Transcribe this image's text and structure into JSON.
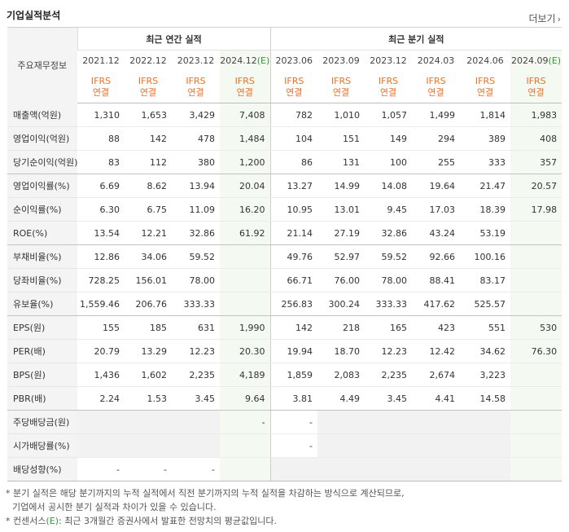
{
  "title": "기업실적분석",
  "more_label": "더보기",
  "more_icon": "chevron-right-icon",
  "row_header_label": "주요재무정보",
  "annual_header": "최근 연간 실적",
  "quarter_header": "최근 분기 실적",
  "periods": [
    {
      "label": "2021.12",
      "std1": "IFRS",
      "std2": "연결",
      "estimate": false
    },
    {
      "label": "2022.12",
      "std1": "IFRS",
      "std2": "연결",
      "estimate": false
    },
    {
      "label": "2023.12",
      "std1": "IFRS",
      "std2": "연결",
      "estimate": false
    },
    {
      "label": "2024.12",
      "est_mark": "(E)",
      "std1": "IFRS",
      "std2": "연결",
      "estimate": true
    },
    {
      "label": "2023.06",
      "std1": "IFRS",
      "std2": "연결",
      "estimate": false
    },
    {
      "label": "2023.09",
      "std1": "IFRS",
      "std2": "연결",
      "estimate": false
    },
    {
      "label": "2023.12",
      "std1": "IFRS",
      "std2": "연결",
      "estimate": false
    },
    {
      "label": "2024.03",
      "std1": "IFRS",
      "std2": "연결",
      "estimate": false
    },
    {
      "label": "2024.06",
      "std1": "IFRS",
      "std2": "연결",
      "estimate": false
    },
    {
      "label": "2024.09",
      "est_mark": "(E)",
      "std1": "IFRS",
      "std2": "연결",
      "estimate": true
    }
  ],
  "rows": [
    {
      "label": "매출액(억원)",
      "values": [
        "1,310",
        "1,653",
        "3,429",
        "7,408",
        "782",
        "1,010",
        "1,057",
        "1,499",
        "1,814",
        "1,983"
      ]
    },
    {
      "label": "영업이익(억원)",
      "values": [
        "88",
        "142",
        "478",
        "1,484",
        "104",
        "151",
        "149",
        "294",
        "389",
        "408"
      ]
    },
    {
      "label": "당기순이익(억원)",
      "values": [
        "83",
        "112",
        "380",
        "1,200",
        "86",
        "131",
        "100",
        "255",
        "333",
        "357"
      ],
      "group_end": true
    },
    {
      "label": "영업이익률(%)",
      "values": [
        "6.69",
        "8.62",
        "13.94",
        "20.04",
        "13.27",
        "14.99",
        "14.08",
        "19.64",
        "21.47",
        "20.57"
      ]
    },
    {
      "label": "순이익률(%)",
      "values": [
        "6.30",
        "6.75",
        "11.09",
        "16.20",
        "10.95",
        "13.01",
        "9.45",
        "17.03",
        "18.39",
        "17.98"
      ]
    },
    {
      "label": "ROE(%)",
      "values": [
        "13.54",
        "12.21",
        "32.86",
        "61.92",
        "21.14",
        "27.19",
        "32.86",
        "43.24",
        "53.19",
        ""
      ],
      "group_end": true
    },
    {
      "label": "부채비율(%)",
      "values": [
        "12.86",
        "34.06",
        "59.52",
        "",
        "49.76",
        "52.97",
        "59.52",
        "92.66",
        "100.16",
        ""
      ]
    },
    {
      "label": "당좌비율(%)",
      "values": [
        "728.25",
        "156.01",
        "78.00",
        "",
        "66.71",
        "76.00",
        "78.00",
        "88.41",
        "83.17",
        ""
      ]
    },
    {
      "label": "유보율(%)",
      "values": [
        "1,559.46",
        "206.76",
        "333.33",
        "",
        "256.83",
        "300.24",
        "333.33",
        "417.62",
        "525.57",
        ""
      ],
      "group_end": true
    },
    {
      "label": "EPS(원)",
      "values": [
        "155",
        "185",
        "631",
        "1,990",
        "142",
        "218",
        "165",
        "423",
        "551",
        "530"
      ]
    },
    {
      "label": "PER(배)",
      "values": [
        "20.79",
        "13.29",
        "12.23",
        "20.30",
        "19.94",
        "18.70",
        "12.23",
        "12.42",
        "34.62",
        "76.30"
      ]
    },
    {
      "label": "BPS(원)",
      "values": [
        "1,436",
        "1,602",
        "2,235",
        "4,189",
        "1,859",
        "2,083",
        "2,235",
        "2,674",
        "3,223",
        ""
      ]
    },
    {
      "label": "PBR(배)",
      "values": [
        "2.24",
        "1.53",
        "3.45",
        "9.64",
        "3.81",
        "4.49",
        "3.45",
        "4.41",
        "14.58",
        ""
      ],
      "group_end": true
    },
    {
      "label": "주당배당금(원)",
      "values": [
        "",
        "",
        "",
        "-",
        "-",
        "",
        "",
        "",
        "",
        ""
      ],
      "empty_cols": [
        0,
        1,
        2,
        5,
        6,
        7,
        8,
        9
      ]
    },
    {
      "label": "시가배당률(%)",
      "values": [
        "",
        "",
        "",
        "",
        "-",
        "",
        "",
        "",
        "",
        ""
      ],
      "empty_cols": [
        0,
        1,
        2,
        3,
        5,
        6,
        7,
        8,
        9
      ]
    },
    {
      "label": "배당성향(%)",
      "values": [
        "-",
        "-",
        "-",
        "",
        "",
        "",
        "",
        "",
        "",
        ""
      ],
      "empty_cols": [
        3,
        4,
        5,
        6,
        7,
        8,
        9
      ]
    }
  ],
  "notes": [
    "* 분기 실적은 해당 분기까지의 누적 실적에서 직전 분기까지의 누적 실적을 차감하는 방식으로 계산되므로,",
    "기업에서 공시한 분기 실적과 차이가 있을 수 있습니다.",
    "* 컨센서스",
    "(E)",
    ": 최근 3개월간 증권사에서 발표한 전망치의 평균값입니다."
  ]
}
